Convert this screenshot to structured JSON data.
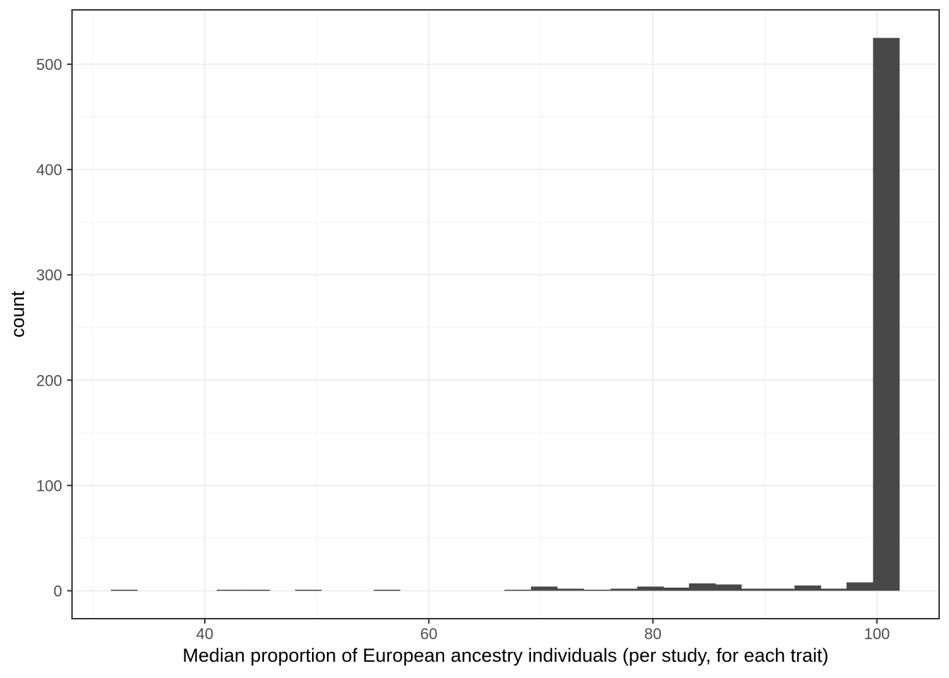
{
  "figure": {
    "background": "#ffffff"
  },
  "chart_data": {
    "type": "bar",
    "subtype": "histogram",
    "title": "",
    "xlabel": "Median proportion of European ancestry individuals (per study, for each trait)",
    "ylabel": "count",
    "legend": null,
    "grid": true,
    "theme": "bw",
    "bar_color": "#484848",
    "panel_border_color": "#333333",
    "tick_color": "#333333",
    "tick_label_color": "#4d4d4d",
    "grid_major_color": "#ebebeb",
    "grid_minor_color": "#f2f2f2",
    "xlim": [
      28.15,
      105.55
    ],
    "ylim": [
      -26.5,
      551.6
    ],
    "x_ticks": [
      40,
      60,
      80,
      100
    ],
    "y_ticks": [
      0,
      100,
      200,
      300,
      400,
      500
    ],
    "x_minor_ticks": [
      30,
      50,
      70,
      90
    ],
    "y_minor_ticks": [
      50,
      150,
      250,
      350,
      450
    ],
    "binwidth": 2.375,
    "bins": [
      {
        "x": 32.81,
        "count": 1
      },
      {
        "x": 42.26,
        "count": 1
      },
      {
        "x": 44.63,
        "count": 1
      },
      {
        "x": 49.25,
        "count": 1
      },
      {
        "x": 56.27,
        "count": 1
      },
      {
        "x": 67.93,
        "count": 1
      },
      {
        "x": 70.3,
        "count": 4
      },
      {
        "x": 72.67,
        "count": 2
      },
      {
        "x": 75.04,
        "count": 1
      },
      {
        "x": 77.41,
        "count": 2
      },
      {
        "x": 79.78,
        "count": 4
      },
      {
        "x": 82.1,
        "count": 3
      },
      {
        "x": 84.41,
        "count": 7
      },
      {
        "x": 86.74,
        "count": 6
      },
      {
        "x": 89.08,
        "count": 2
      },
      {
        "x": 91.45,
        "count": 2
      },
      {
        "x": 93.83,
        "count": 5
      },
      {
        "x": 96.15,
        "count": 2
      },
      {
        "x": 98.47,
        "count": 8
      },
      {
        "x": 100.84,
        "count": 525
      }
    ]
  }
}
